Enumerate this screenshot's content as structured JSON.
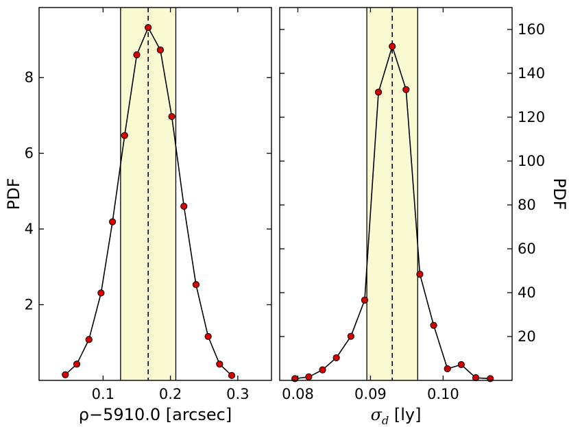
{
  "chart_data": [
    {
      "type": "line",
      "xlabel": "ρ−5910.0 [arcsec]",
      "ylabel": "PDF",
      "xlim": [
        0.005,
        0.35
      ],
      "ylim": [
        0,
        9.85
      ],
      "xticks": [
        "0.1",
        "0.2",
        "0.3"
      ],
      "yticks": [
        "2",
        "4",
        "6",
        "8"
      ],
      "ytick_side": "left",
      "median": 0.167,
      "interval": [
        0.126,
        0.208
      ],
      "series": [
        {
          "x": [
            0.044,
            0.061,
            0.079,
            0.097,
            0.114,
            0.132,
            0.15,
            0.167,
            0.185,
            0.202,
            0.22,
            0.238,
            0.256,
            0.273,
            0.291
          ],
          "y": [
            0.15,
            0.43,
            1.08,
            2.31,
            4.19,
            6.47,
            8.6,
            9.32,
            8.73,
            6.97,
            4.6,
            2.53,
            1.16,
            0.43,
            0.13
          ]
        }
      ]
    },
    {
      "type": "line",
      "xlabel": "σd [ly]",
      "xlabel_base": "σ",
      "xlabel_sub": "d",
      "xlabel_unit": " [ly]",
      "ylabel": "PDF",
      "xlim": [
        0.0775,
        0.1095
      ],
      "ylim": [
        0,
        170
      ],
      "xticks": [
        "0.08",
        "0.09",
        "0.10"
      ],
      "yticks": [
        "20",
        "40",
        "60",
        "80",
        "100",
        "120",
        "140",
        "160"
      ],
      "ytick_side": "right",
      "median": 0.093,
      "interval": [
        0.0895,
        0.0965
      ],
      "series": [
        {
          "x": [
            0.0796,
            0.0815,
            0.0834,
            0.0853,
            0.0873,
            0.0892,
            0.0911,
            0.093,
            0.0949,
            0.0968,
            0.0987,
            0.1006,
            0.1025,
            0.1045,
            0.1065
          ],
          "y": [
            0.8,
            1.6,
            4.8,
            10.3,
            20.1,
            36.6,
            131.4,
            152.3,
            132.6,
            48.4,
            25.1,
            5.3,
            7.2,
            1.2,
            0.8
          ]
        }
      ]
    }
  ],
  "colors": {
    "band": "#f9f9d2",
    "marker_fill": "#d40000",
    "line": "#000000"
  }
}
